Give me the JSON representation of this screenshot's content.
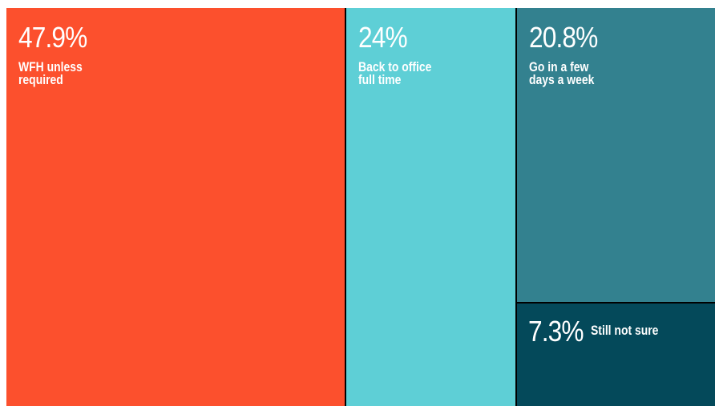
{
  "chart_data": {
    "type": "treemap",
    "series": [
      {
        "value": 47.9,
        "value_label": "47.9%",
        "label": "WFH unless\nrequired",
        "color": "#fc502d"
      },
      {
        "value": 24,
        "value_label": "24%",
        "label": "Back to office\nfull time",
        "color": "#5ecfd6"
      },
      {
        "value": 20.8,
        "value_label": "20.8%",
        "label": "Go in a few\ndays a week",
        "color": "#33818f"
      },
      {
        "value": 7.3,
        "value_label": "7.3%",
        "label": "Still not sure",
        "color": "#04495a"
      }
    ]
  }
}
